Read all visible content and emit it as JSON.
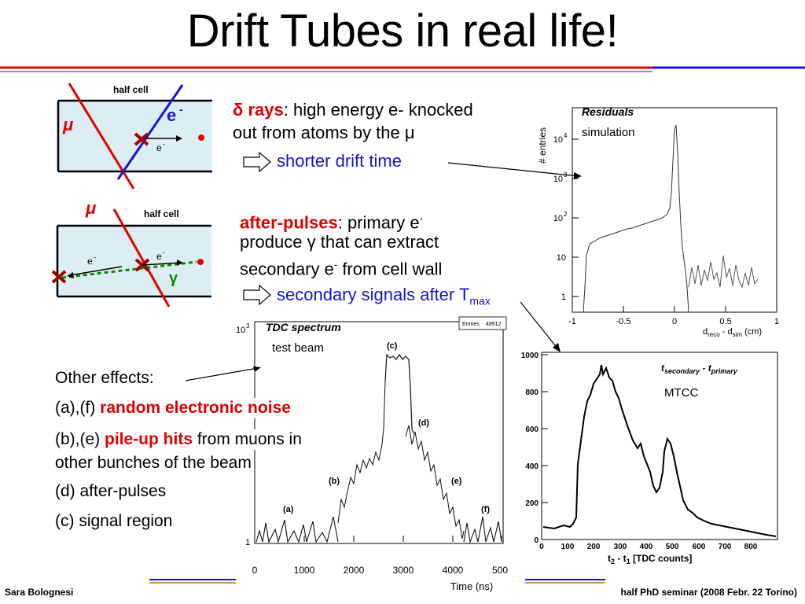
{
  "title": "Drift Tubes in real life!",
  "cell1": {
    "label": "half cell",
    "mu": "μ",
    "e_big": "e",
    "e_sup": "-",
    "e_small": "e",
    "e_small_sup": "-"
  },
  "cell2": {
    "label": "half cell",
    "mu": "μ",
    "e1": "e",
    "e1_sup": "-",
    "e2": "e",
    "e2_sup": "-",
    "gamma": "γ"
  },
  "delta": {
    "symbol": "δ",
    "word": "rays",
    "rest1": ": high energy e- knocked",
    "line2a": "out from atoms by the ",
    "mu": "μ",
    "result": "shorter drift time"
  },
  "afterpulse": {
    "word": "after-pulses",
    "rest1a": ": primary e",
    "rest1sup": "-",
    "line2a": "produce ",
    "gamma": "γ",
    "line2b": " that can extract",
    "line3a": "secondary e",
    "line3sup": "-",
    "line3b": " from cell wall",
    "result_a": "secondary signals after T",
    "result_sub": "max"
  },
  "other": {
    "heading": "Other effects:",
    "line_a_prefix": "(a),(f) ",
    "line_a_red": "random electronic noise",
    "line_b_prefix": "(b),(e) ",
    "line_b_red": "pile-up hits",
    "line_b_rest": " from muons in",
    "line_b2": "other bunches of the beam",
    "line_d": "(d) after-pulses",
    "line_c": "(c) signal region"
  },
  "residuals": {
    "title": "Residuals",
    "subtitle": "simulation",
    "ylabel": "# entries",
    "yticks": [
      "1",
      "10",
      "10",
      "10",
      "10"
    ],
    "ysup": [
      "",
      "",
      "2",
      "3",
      "4"
    ],
    "xticks": [
      "-1",
      "-0.5",
      "0",
      "0.5",
      "1"
    ],
    "xlabel": {
      "a": "d",
      "a_sub": "reco",
      "b": " - d",
      "b_sub": "sim",
      "c": " (cm)"
    }
  },
  "tdc": {
    "title": "TDC spectrum",
    "subtitle": "test beam",
    "stats_key": "Entries",
    "stats_val": "48912",
    "ytop": "10",
    "ytop_sup": "3",
    "ybottom": "1",
    "xticks": [
      "0",
      "1000",
      "2000",
      "3000",
      "4000",
      "500"
    ],
    "xlabel": "Time (ns)",
    "regions": [
      "(a)",
      "(b)",
      "(c)",
      "(d)",
      "(e)",
      "(f)"
    ]
  },
  "mtcc": {
    "title_a": "t",
    "title_a_sub": "secondary",
    "title_mid": " - t",
    "title_b_sub": "primary",
    "subtitle": "MTCC",
    "yticks": [
      "0",
      "200",
      "400",
      "600",
      "800",
      "1000"
    ],
    "xticks": [
      "0",
      "100",
      "200",
      "300",
      "400",
      "500",
      "600",
      "700",
      "800"
    ],
    "xlabel": {
      "a": "t",
      "a_sub": "2",
      "b": " -  t",
      "b_sub": "1",
      "c": " [TDC counts]"
    }
  },
  "footer": {
    "left": "Sara Bolognesi",
    "right": "half PhD seminar (2008 Febr. 22 Torino)"
  },
  "colors": {
    "red": "#e00000",
    "blue": "#1414d8",
    "green": "#0a8a0a",
    "cell": "#dcedf3",
    "darkred": "#a00000"
  }
}
